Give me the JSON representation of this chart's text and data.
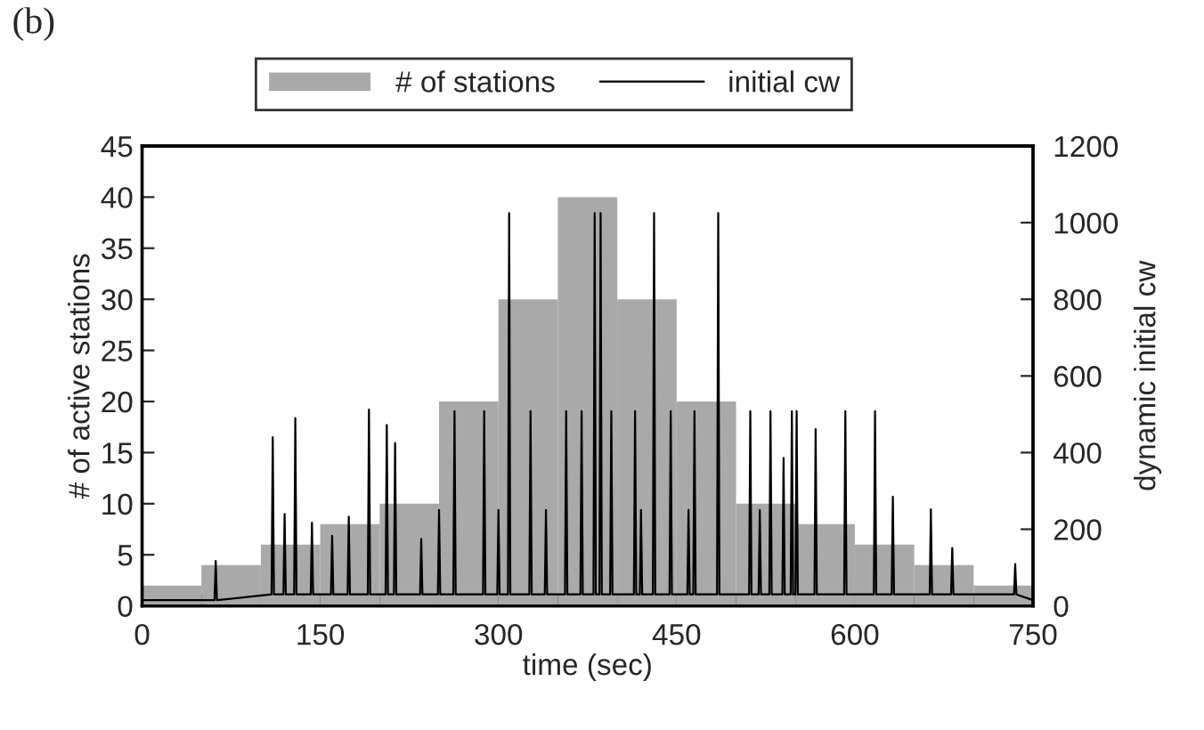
{
  "chart_data": {
    "type": "histogram",
    "title": "(b)",
    "xlabel": "time (sec)",
    "ylabel": "# of active stations",
    "y2label": "dynamic initial cw",
    "legend": "top",
    "grid": false,
    "xlim": [
      0,
      750
    ],
    "xticks": [
      0,
      {
        "value": 50,
        "label": null
      },
      {
        "value": 100,
        "label": null
      },
      150,
      {
        "value": 200,
        "label": null
      },
      {
        "value": 250,
        "label": null
      },
      300,
      {
        "value": 350,
        "label": null
      },
      {
        "value": 400,
        "label": null
      },
      450,
      {
        "value": 500,
        "label": null
      },
      {
        "value": 550,
        "label": null
      },
      600,
      {
        "value": 650,
        "label": null
      },
      {
        "value": 700,
        "label": null
      },
      750
    ],
    "ylim": [
      0,
      45
    ],
    "yticks": [
      0,
      5,
      10,
      15,
      20,
      25,
      30,
      35,
      40,
      45
    ],
    "y2lim": [
      0,
      1200
    ],
    "y2ticks": [
      0,
      200,
      400,
      600,
      800,
      1000,
      1200
    ],
    "series": [
      {
        "name": "# of stations",
        "color": "#a9a9a9",
        "bins": [
          0,
          50,
          100,
          150,
          200,
          250,
          300,
          350,
          400,
          450,
          500,
          550,
          600,
          650,
          700,
          750
        ],
        "values": [
          2,
          4,
          6,
          8,
          10,
          20,
          30,
          40,
          30,
          20,
          10,
          8,
          6,
          4,
          2
        ]
      },
      {
        "name": "initial cw",
        "type": "line",
        "axis": "y2",
        "color": "#000000",
        "line_style": "solid",
        "x": [
          0,
          61,
          62,
          63,
          109,
          110,
          111,
          119,
          120,
          121,
          128,
          129,
          130,
          142,
          143,
          144,
          159,
          160,
          161,
          173,
          174,
          175,
          190,
          191,
          192,
          205,
          206,
          207,
          212,
          213,
          214,
          234,
          235,
          236,
          249,
          250,
          251,
          262,
          263,
          264,
          287,
          288,
          289,
          299,
          300,
          301,
          308,
          309,
          310,
          326,
          327,
          328,
          339,
          340,
          341,
          356,
          357,
          358,
          369,
          370,
          371,
          380,
          381,
          382,
          385,
          386,
          387,
          394,
          395,
          396,
          414,
          415,
          416,
          419,
          420,
          421,
          430,
          431,
          432,
          444,
          445,
          446,
          459,
          460,
          461,
          464,
          465,
          466,
          484,
          485,
          486,
          511,
          512,
          513,
          519,
          520,
          521,
          528,
          529,
          530,
          539,
          540,
          541,
          546,
          547,
          548,
          550,
          551,
          552,
          566,
          567,
          568,
          591,
          592,
          593,
          616,
          617,
          618,
          631,
          632,
          633,
          663,
          664,
          665,
          681,
          682,
          683,
          734,
          735,
          736,
          750
        ],
        "values": [
          15,
          15,
          117,
          15,
          30,
          440,
          30,
          30,
          240,
          30,
          30,
          490,
          30,
          30,
          217,
          30,
          30,
          183,
          30,
          30,
          233,
          30,
          30,
          512,
          30,
          30,
          472,
          30,
          30,
          425,
          30,
          30,
          175,
          30,
          30,
          250,
          30,
          30,
          508,
          30,
          30,
          508,
          30,
          30,
          250,
          30,
          30,
          1025,
          30,
          30,
          508,
          30,
          30,
          250,
          30,
          30,
          508,
          30,
          30,
          508,
          30,
          30,
          1025,
          30,
          30,
          1025,
          30,
          30,
          508,
          30,
          30,
          508,
          30,
          30,
          250,
          30,
          30,
          1025,
          30,
          30,
          508,
          30,
          30,
          250,
          30,
          30,
          508,
          30,
          30,
          1025,
          30,
          30,
          508,
          30,
          30,
          250,
          30,
          30,
          508,
          30,
          30,
          386,
          30,
          30,
          508,
          30,
          30,
          508,
          30,
          30,
          461,
          30,
          30,
          508,
          30,
          30,
          508,
          30,
          30,
          285,
          30,
          30,
          252,
          30,
          30,
          151,
          30,
          30,
          109,
          30,
          15
        ]
      }
    ]
  }
}
